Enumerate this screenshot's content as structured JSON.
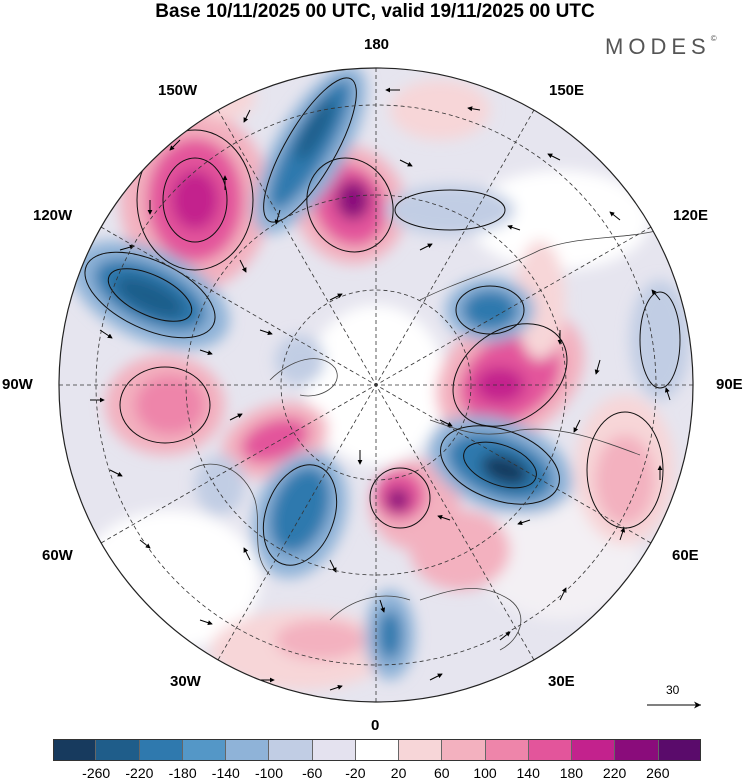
{
  "title": "Base 10/11/2025 00 UTC, valid 19/11/2025 00 UTC",
  "brand": "MODES",
  "brand_mark": "©",
  "map": {
    "projection": "north polar stereographic",
    "longitude_labels": {
      "top": "180",
      "bottom": "0",
      "left": "90W",
      "right": "90E",
      "upper_left_1": "150W",
      "upper_left_2": "120W",
      "upper_right_1": "150E",
      "upper_right_2": "120E",
      "lower_left_1": "60W",
      "lower_left_2": "30W",
      "lower_right_1": "60E",
      "lower_right_2": "30E"
    },
    "vector_reference": "30"
  },
  "colorbar": {
    "colors": [
      "#173a5e",
      "#1f5d8a",
      "#2f79ae",
      "#5497c7",
      "#8fb3d8",
      "#c1cde4",
      "#e4e2ef",
      "#ffffff",
      "#f7d6d8",
      "#f3b1bf",
      "#ee85aa",
      "#e3559b",
      "#c3228d",
      "#8a0c7b",
      "#5a0b6b"
    ],
    "labels": [
      "-260",
      "-220",
      "-180",
      "-140",
      "-100",
      "-60",
      "-20",
      "20",
      "60",
      "100",
      "140",
      "180",
      "220",
      "260"
    ]
  }
}
